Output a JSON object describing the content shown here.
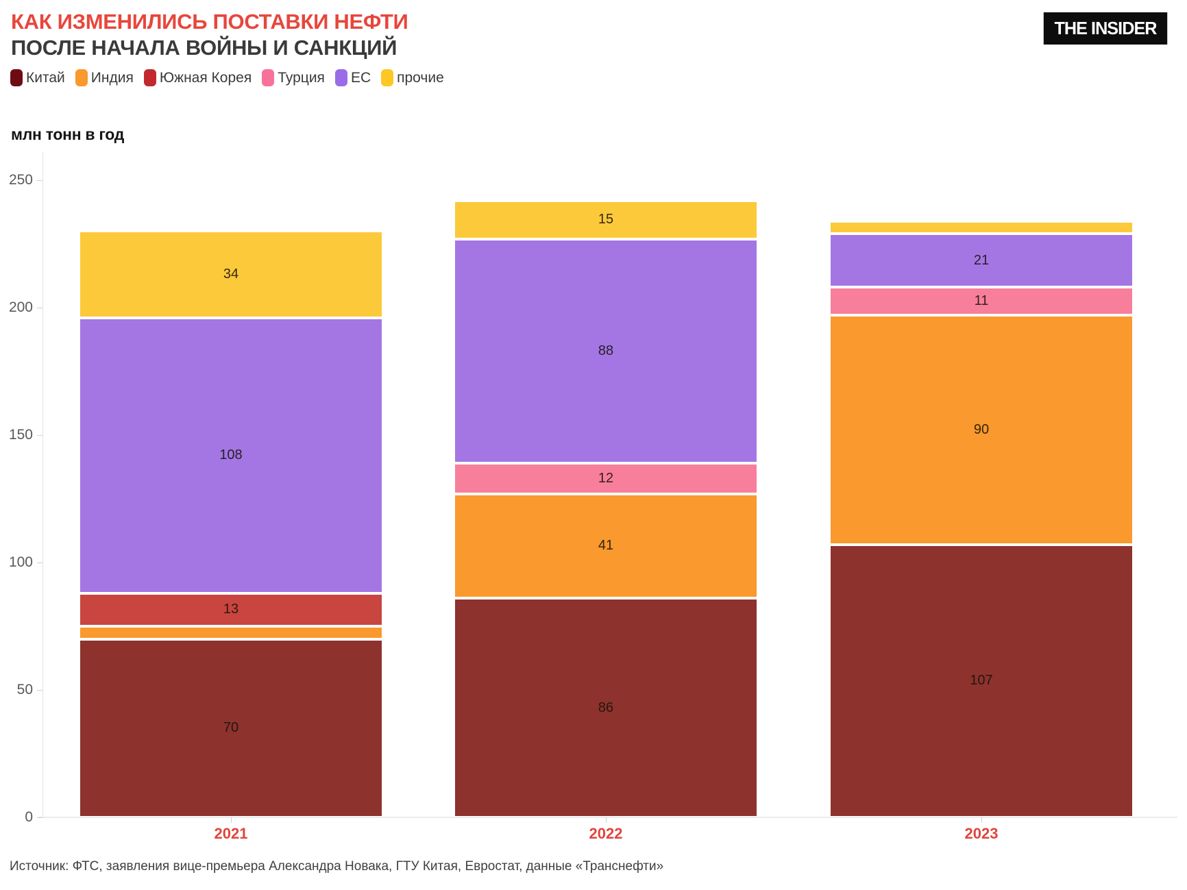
{
  "header": {
    "title_line1": "КАК ИЗМЕНИЛИСЬ ПОСТАВКИ НЕФТИ",
    "title_line2": "ПОСЛЕ НАЧАЛА ВОЙНЫ И САНКЦИЙ",
    "title_accent_color": "#e8463c",
    "logo_text": "THE INSIDER"
  },
  "legend": {
    "items": [
      {
        "label": "Китай",
        "color": "#6d0d13"
      },
      {
        "label": "Индия",
        "color": "#f9992e"
      },
      {
        "label": "Южная Корея",
        "color": "#c2292e"
      },
      {
        "label": "Турция",
        "color": "#f8719a"
      },
      {
        "label": "ЕС",
        "color": "#9b6ce8"
      },
      {
        "label": "прочие",
        "color": "#fdc825"
      }
    ]
  },
  "chart_data": {
    "type": "bar",
    "stacked": true,
    "unit_label": "млн тонн в год",
    "categories": [
      "2021",
      "2022",
      "2023"
    ],
    "series": [
      {
        "name": "Китай",
        "color": "#8d322d",
        "values": [
          70,
          86,
          107
        ]
      },
      {
        "name": "Индия",
        "color": "#f9992e",
        "values": [
          5,
          41,
          90
        ]
      },
      {
        "name": "Южная Корея",
        "color": "#c9453f",
        "values": [
          13,
          0,
          0
        ]
      },
      {
        "name": "Турция",
        "color": "#f87f9b",
        "values": [
          0,
          12,
          11
        ]
      },
      {
        "name": "ЕС",
        "color": "#a376e4",
        "values": [
          108,
          88,
          21
        ]
      },
      {
        "name": "прочие",
        "color": "#fcc93a",
        "values": [
          34,
          15,
          5
        ]
      }
    ],
    "totals": [
      230,
      242,
      234
    ],
    "y_ticks": [
      0,
      50,
      100,
      150,
      200,
      250
    ],
    "ylim": [
      0,
      260
    ],
    "grid": false,
    "legend_position": "top",
    "value_label_min": 10,
    "x_tick_label_color": "#e0453c",
    "y_tick_label_color": "#595959"
  },
  "footer": {
    "source": "Источник: ФТС, заявления вице-премьера Александра Новака, ГТУ Китая, Евростат, данные «Транснефти»"
  }
}
